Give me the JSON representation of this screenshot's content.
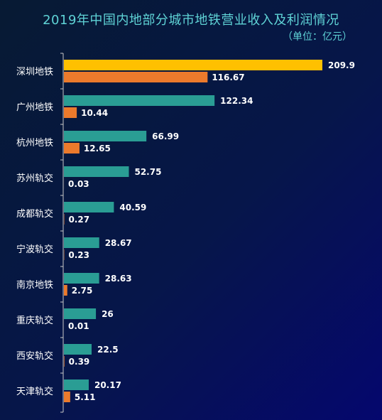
{
  "title": "2019年中国内地部分城市地铁营业收入及利润情况",
  "unit": "（单位：亿元）",
  "colors": {
    "revenue_highlight": "#ffc000",
    "revenue": "#2a9d94",
    "profit": "#ec7a2c",
    "axis": "#c8c8c8"
  },
  "chart_data": {
    "type": "bar",
    "orientation": "horizontal",
    "title": "2019年中国内地部分城市地铁营业收入及利润情况",
    "unit": "亿元",
    "categories": [
      "深圳地铁",
      "广州地铁",
      "杭州地铁",
      "苏州轨交",
      "成都轨交",
      "宁波轨交",
      "南京地铁",
      "重庆轨交",
      "西安轨交",
      "天津轨交"
    ],
    "series": [
      {
        "values": [
          209.9,
          122.34,
          66.99,
          52.75,
          40.59,
          28.67,
          28.63,
          26,
          22.5,
          20.17
        ]
      },
      {
        "values": [
          116.67,
          10.44,
          12.65,
          0.03,
          0.27,
          0.23,
          2.75,
          0.01,
          0.39,
          5.11
        ]
      }
    ],
    "value_labels": [
      [
        "209.9",
        "122.34",
        "66.99",
        "52.75",
        "40.59",
        "28.67",
        "28.63",
        "26",
        "22.5",
        "20.17"
      ],
      [
        "116.67",
        "10.44",
        "12.65",
        "0.03",
        "0.27",
        "0.23",
        "2.75",
        "0.01",
        "0.39",
        "5.11"
      ]
    ],
    "highlight_index": 0,
    "xlim": [
      0,
      209.9
    ],
    "grid": false,
    "legend": "none"
  }
}
